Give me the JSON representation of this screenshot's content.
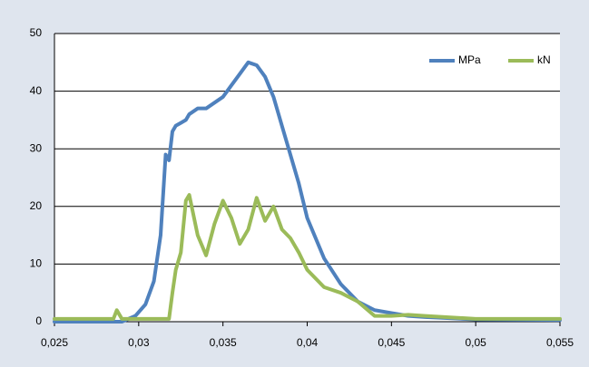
{
  "chart_data": {
    "type": "line",
    "x": [
      0.025,
      0.027,
      0.0285,
      0.0287,
      0.029,
      0.0298,
      0.0304,
      0.0309,
      0.0313,
      0.0316,
      0.0318,
      0.032,
      0.0322,
      0.0325,
      0.0328,
      0.033,
      0.0335,
      0.034,
      0.0345,
      0.035,
      0.0355,
      0.036,
      0.0365,
      0.037,
      0.0375,
      0.038,
      0.0385,
      0.039,
      0.0395,
      0.04,
      0.041,
      0.042,
      0.043,
      0.044,
      0.045,
      0.046,
      0.047,
      0.05,
      0.055
    ],
    "series": [
      {
        "name": "MPa",
        "color": "#4f81bd",
        "values": [
          0,
          0,
          0,
          0,
          0,
          1,
          3,
          7,
          15,
          29,
          28,
          33,
          34,
          34.5,
          35,
          36,
          37,
          37,
          38,
          39,
          41,
          43,
          45,
          44.5,
          42.5,
          39,
          34,
          29,
          24,
          18,
          11,
          6.5,
          3.5,
          2,
          1.5,
          1,
          0.8,
          0.4,
          0.3
        ]
      },
      {
        "name": "kN",
        "color": "#9bbb59",
        "values": [
          0.5,
          0.5,
          0.5,
          2,
          0.5,
          0.5,
          0.5,
          0.5,
          0.5,
          0.5,
          0.5,
          5,
          9,
          12,
          21,
          22,
          15,
          11.5,
          17,
          21,
          18,
          13.5,
          16,
          21.5,
          17.5,
          20,
          16,
          14.5,
          12,
          9,
          6,
          5,
          3.5,
          1,
          1,
          1.2,
          1,
          0.5,
          0.5
        ]
      }
    ],
    "xlim": [
      0.025,
      0.055
    ],
    "xticks": [
      {
        "value": 0.025,
        "label": "0,025"
      },
      {
        "value": 0.03,
        "label": "0,03"
      },
      {
        "value": 0.035,
        "label": "0,035"
      },
      {
        "value": 0.04,
        "label": "0,04"
      },
      {
        "value": 0.045,
        "label": "0,045"
      },
      {
        "value": 0.05,
        "label": "0,05"
      },
      {
        "value": 0.055,
        "label": "0,055"
      }
    ],
    "ylim": [
      0,
      50
    ],
    "yticks": [
      0,
      10,
      20,
      30,
      40,
      50
    ],
    "grid": true,
    "legend": "top-right"
  }
}
